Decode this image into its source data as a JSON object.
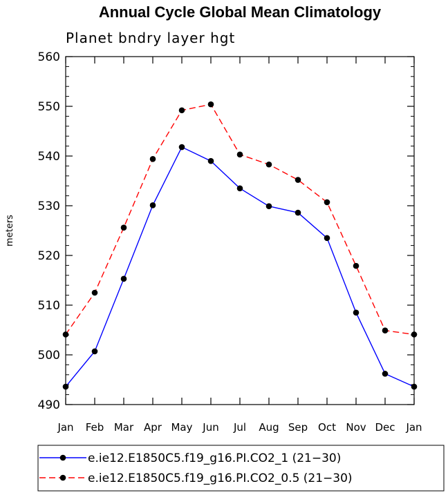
{
  "chart_data": {
    "type": "line",
    "title": "Annual Cycle Global Mean Climatology",
    "subtitle": "Planet bndry layer hgt",
    "xlabel": "",
    "ylabel": "meters",
    "categories": [
      "Jan",
      "Feb",
      "Mar",
      "Apr",
      "May",
      "Jun",
      "Jul",
      "Aug",
      "Sep",
      "Oct",
      "Nov",
      "Dec",
      "Jan"
    ],
    "ylim": [
      490,
      560
    ],
    "yticks": [
      490,
      500,
      510,
      520,
      530,
      540,
      550,
      560
    ],
    "grid": false,
    "legend_position": "bottom",
    "series": [
      {
        "name": "e.ie12.E1850C5.f19_g16.PI.CO2_1 (21−30)",
        "color": "#0000ff",
        "line_style": "solid",
        "values": [
          493.6,
          500.7,
          515.3,
          530.1,
          541.8,
          539.0,
          533.5,
          529.9,
          528.6,
          523.5,
          508.5,
          496.2,
          493.6
        ]
      },
      {
        "name": "e.ie12.E1850C5.f19_g16.PI.CO2_0.5 (21−30)",
        "color": "#ff0000",
        "line_style": "dashed",
        "values": [
          504.1,
          512.5,
          525.6,
          539.4,
          549.2,
          550.4,
          540.3,
          538.3,
          535.2,
          530.7,
          517.9,
          504.9,
          504.1
        ]
      }
    ]
  }
}
